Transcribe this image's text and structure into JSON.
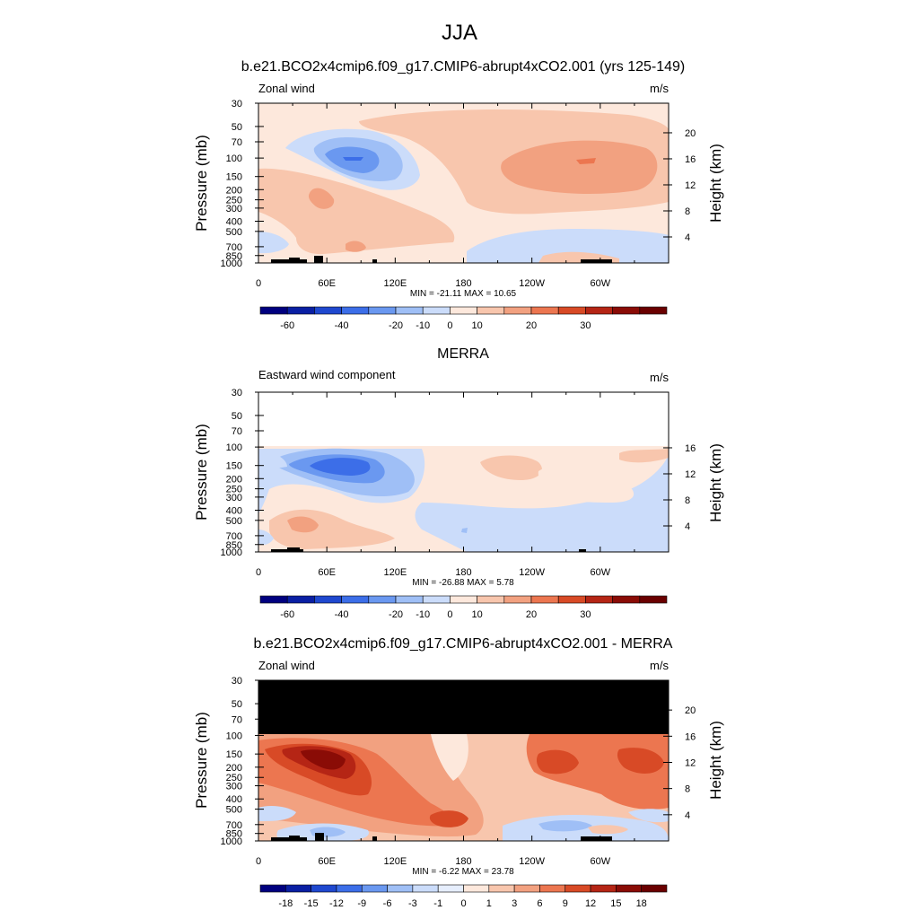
{
  "figure": {
    "title": "JJA",
    "colors": {
      "model_scale": [
        "#00007f",
        "#0a1fa3",
        "#1f48cf",
        "#3c6ee8",
        "#6a98f0",
        "#9fbff6",
        "#cbdcfa",
        "#fde8dc",
        "#f8c6ad",
        "#f2a180",
        "#ec7650",
        "#d84a26",
        "#b52515",
        "#8a0c06",
        "#6a0000"
      ],
      "diff_scale": [
        "#00007f",
        "#0a1fa3",
        "#1f48cf",
        "#3c6ee8",
        "#6a98f0",
        "#9fbff6",
        "#cbdcfa",
        "#e6eefd",
        "#fde8dc",
        "#f8c6ad",
        "#f2a180",
        "#ec7650",
        "#d84a26",
        "#b52515",
        "#8a0c06",
        "#6a0000"
      ],
      "masked": "#000000",
      "topography": "#000000"
    }
  },
  "chart_data": [
    {
      "type": "heatmap",
      "title": "b.e21.BCO2x4cmip6.f09_g17.CMIP6-abrupt4xCO2.001 (yrs 125-149)",
      "left_label": "Zonal wind",
      "units": "m/s",
      "ylabel": "Pressure (mb)",
      "ylabel_right": "Height (km)",
      "x_ticks": [
        "0",
        "60E",
        "120E",
        "180",
        "120W",
        "60W"
      ],
      "y_ticks": [
        "30",
        "50",
        "70",
        "100",
        "150",
        "200",
        "250",
        "300",
        "400",
        "500",
        "700",
        "850",
        "1000"
      ],
      "y_ticks_right": [
        "20",
        "16",
        "12",
        "8",
        "4"
      ],
      "ylim": [
        1000,
        30
      ],
      "stats": "MIN = -21.11  MAX =  10.65",
      "colorbar_labels": [
        "-60",
        "-40",
        "-20",
        "-10",
        "0",
        "10",
        "20",
        "30"
      ]
    },
    {
      "type": "heatmap",
      "title": "MERRA",
      "left_label": "Eastward wind component",
      "units": "m/s",
      "ylabel": "Pressure (mb)",
      "ylabel_right": "Height (km)",
      "x_ticks": [
        "0",
        "60E",
        "120E",
        "180",
        "120W",
        "60W"
      ],
      "y_ticks": [
        "30",
        "50",
        "70",
        "100",
        "150",
        "200",
        "250",
        "300",
        "400",
        "500",
        "700",
        "850",
        "1000"
      ],
      "y_ticks_right": [
        "16",
        "12",
        "8",
        "4"
      ],
      "ylim": [
        1000,
        30
      ],
      "data_top_pressure": 100,
      "stats": "MIN = -26.88  MAX =   5.78",
      "colorbar_labels": [
        "-60",
        "-40",
        "-20",
        "-10",
        "0",
        "10",
        "20",
        "30"
      ]
    },
    {
      "type": "heatmap",
      "title": "b.e21.BCO2x4cmip6.f09_g17.CMIP6-abrupt4xCO2.001 - MERRA",
      "left_label": "Zonal wind",
      "units": "m/s",
      "ylabel": "Pressure (mb)",
      "ylabel_right": "Height (km)",
      "x_ticks": [
        "0",
        "60E",
        "120E",
        "180",
        "120W",
        "60W"
      ],
      "y_ticks": [
        "30",
        "50",
        "70",
        "100",
        "150",
        "200",
        "250",
        "300",
        "400",
        "500",
        "700",
        "850",
        "1000"
      ],
      "y_ticks_right": [
        "20",
        "16",
        "12",
        "8",
        "4"
      ],
      "ylim": [
        1000,
        30
      ],
      "data_top_pressure": 100,
      "stats": "MIN =  -6.22  MAX =  23.78",
      "colorbar_labels": [
        "-18",
        "-15",
        "-12",
        "-9",
        "-6",
        "-3",
        "-1",
        "0",
        "1",
        "3",
        "6",
        "9",
        "12",
        "15",
        "18"
      ]
    }
  ]
}
